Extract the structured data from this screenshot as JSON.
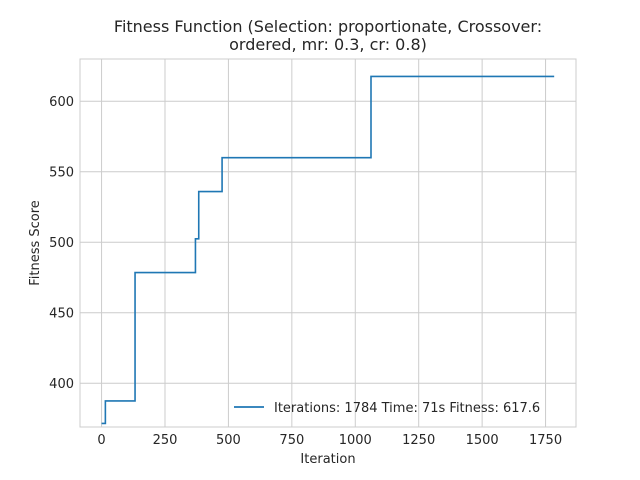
{
  "chart_data": {
    "type": "line",
    "title_line1": "Fitness Function (Selection: proportionate, Crossover:",
    "title_line2": "ordered, mr: 0.3, cr: 0.8)",
    "xlabel": "Iteration",
    "ylabel": "Fitness Score",
    "xlim": [
      -85,
      1870
    ],
    "ylim": [
      369,
      630
    ],
    "xticks": [
      0,
      250,
      500,
      750,
      1000,
      1250,
      1500,
      1750
    ],
    "yticks": [
      400,
      450,
      500,
      550,
      600
    ],
    "grid": true,
    "legend_position": "lower-right",
    "series": [
      {
        "name": "Iterations: 1784 Time: 71s Fitness: 617.6",
        "color": "#1f77b4",
        "step": true,
        "x": [
          0,
          15,
          15,
          132,
          132,
          370,
          370,
          383,
          383,
          475,
          475,
          1062,
          1062,
          1784
        ],
        "y": [
          371.5,
          371.5,
          387.5,
          387.5,
          478.5,
          478.5,
          502.5,
          502.5,
          536.0,
          536.0,
          560.0,
          560.0,
          617.6,
          617.6
        ]
      }
    ]
  }
}
